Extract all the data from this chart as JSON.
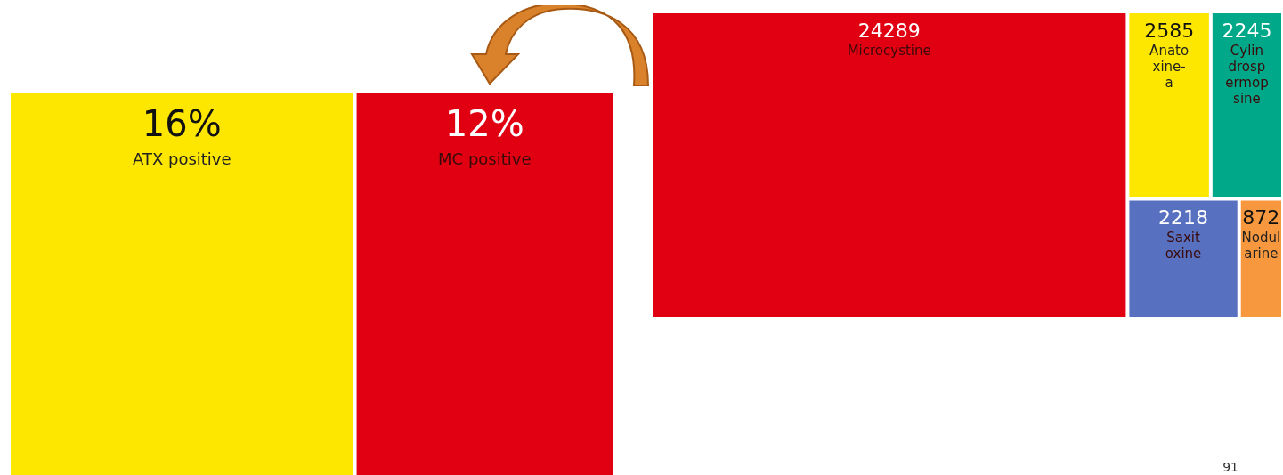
{
  "chart_data": [
    {
      "type": "other",
      "categories": [
        "ATX positive",
        "MC positive"
      ],
      "values": [
        16,
        12
      ],
      "value_labels": [
        "16%",
        "12%"
      ],
      "colors": [
        "#fde700",
        "#e00012"
      ]
    },
    {
      "type": "other",
      "categories": [
        "Microcystine",
        "Anatoxine-a",
        "Cylindrospermopsine",
        "Saxitoxine",
        "Nodularine"
      ],
      "values": [
        24289,
        2585,
        2245,
        2218,
        872
      ],
      "data_labels": true,
      "colors": [
        "#e00012",
        "#fde700",
        "#00a88a",
        "#5870c0",
        "#f7983f"
      ],
      "annotations": [
        "91"
      ]
    }
  ]
}
